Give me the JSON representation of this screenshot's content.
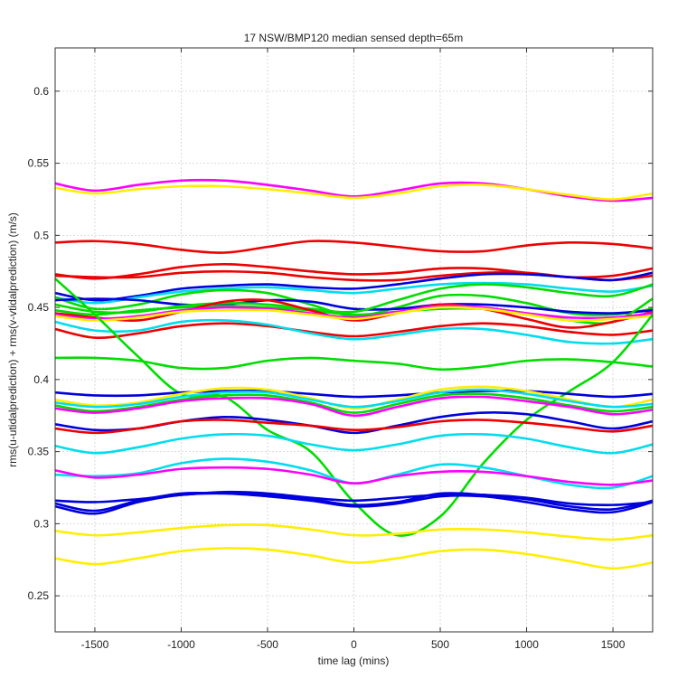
{
  "chart_data": {
    "type": "line",
    "title": "17 NSW/BMP120 median sensed depth=65m",
    "xlabel": "time lag (mins)",
    "ylabel": "rms(u-utidalprediction) + rms(v-vtidalprediction) (m/s)",
    "xlim": [
      -1730,
      1730
    ],
    "ylim": [
      0.225,
      0.63
    ],
    "grid": true,
    "x_ticks": [
      -1500,
      -1000,
      -500,
      0,
      500,
      1000,
      1500
    ],
    "y_ticks": [
      0.25,
      0.3,
      0.35,
      0.4,
      0.45,
      0.5,
      0.55,
      0.6
    ],
    "x_tick_labels": [
      "-1500",
      "-1000",
      "-500",
      "0",
      "500",
      "1000",
      "1500"
    ],
    "y_tick_labels": [
      "0.25",
      "0.3",
      "0.35",
      "0.4",
      "0.45",
      "0.5",
      "0.55",
      "0.6"
    ],
    "x": [
      -1730,
      -1500,
      -1250,
      -1000,
      -750,
      -500,
      -250,
      0,
      250,
      500,
      750,
      1000,
      1250,
      1500,
      1730
    ],
    "series": [
      {
        "color": "#ff00ff",
        "values": [
          0.536,
          0.531,
          0.535,
          0.538,
          0.538,
          0.535,
          0.531,
          0.527,
          0.531,
          0.536,
          0.536,
          0.532,
          0.527,
          0.524,
          0.526
        ]
      },
      {
        "color": "#ffee00",
        "values": [
          0.533,
          0.529,
          0.532,
          0.534,
          0.534,
          0.532,
          0.529,
          0.526,
          0.529,
          0.534,
          0.535,
          0.532,
          0.528,
          0.525,
          0.529
        ]
      },
      {
        "color": "#ee0000",
        "values": [
          0.495,
          0.496,
          0.494,
          0.49,
          0.488,
          0.492,
          0.496,
          0.495,
          0.492,
          0.489,
          0.489,
          0.493,
          0.495,
          0.494,
          0.491
        ]
      },
      {
        "color": "#ee0000",
        "values": [
          0.473,
          0.47,
          0.473,
          0.478,
          0.48,
          0.478,
          0.475,
          0.473,
          0.474,
          0.477,
          0.477,
          0.474,
          0.471,
          0.472,
          0.477
        ]
      },
      {
        "color": "#ee0000",
        "values": [
          0.472,
          0.471,
          0.471,
          0.474,
          0.475,
          0.474,
          0.471,
          0.469,
          0.469,
          0.472,
          0.474,
          0.474,
          0.471,
          0.469,
          0.472
        ]
      },
      {
        "color": "#0000dd",
        "values": [
          0.46,
          0.455,
          0.458,
          0.463,
          0.465,
          0.466,
          0.464,
          0.463,
          0.466,
          0.47,
          0.473,
          0.473,
          0.471,
          0.469,
          0.474
        ]
      },
      {
        "color": "#00ddee",
        "values": [
          0.457,
          0.453,
          0.457,
          0.461,
          0.463,
          0.464,
          0.462,
          0.46,
          0.463,
          0.466,
          0.467,
          0.466,
          0.463,
          0.461,
          0.465
        ]
      },
      {
        "color": "#00dd00",
        "values": [
          0.457,
          0.449,
          0.452,
          0.459,
          0.462,
          0.46,
          0.452,
          0.444,
          0.45,
          0.458,
          0.458,
          0.453,
          0.446,
          0.445,
          0.449
        ]
      },
      {
        "color": "#0000dd",
        "values": [
          0.455,
          0.456,
          0.455,
          0.452,
          0.452,
          0.455,
          0.454,
          0.449,
          0.449,
          0.452,
          0.452,
          0.45,
          0.447,
          0.446,
          0.448
        ]
      },
      {
        "color": "#00dd00",
        "values": [
          0.452,
          0.447,
          0.447,
          0.451,
          0.453,
          0.452,
          0.449,
          0.447,
          0.455,
          0.463,
          0.466,
          0.464,
          0.46,
          0.458,
          0.466
        ]
      },
      {
        "color": "#00dd00",
        "values": [
          0.448,
          0.445,
          0.448,
          0.45,
          0.451,
          0.45,
          0.448,
          0.445,
          0.447,
          0.449,
          0.449,
          0.446,
          0.441,
          0.44,
          0.456
        ]
      },
      {
        "color": "#ee0000",
        "values": [
          0.446,
          0.443,
          0.441,
          0.447,
          0.454,
          0.455,
          0.448,
          0.441,
          0.446,
          0.452,
          0.449,
          0.442,
          0.436,
          0.44,
          0.447
        ]
      },
      {
        "color": "#ff00ff",
        "values": [
          0.445,
          0.442,
          0.444,
          0.448,
          0.45,
          0.449,
          0.446,
          0.443,
          0.447,
          0.451,
          0.45,
          0.446,
          0.443,
          0.443,
          0.446
        ]
      },
      {
        "color": "#ffee00",
        "values": [
          0.444,
          0.441,
          0.443,
          0.447,
          0.448,
          0.448,
          0.445,
          0.442,
          0.446,
          0.45,
          0.449,
          0.445,
          0.441,
          0.442,
          0.444
        ]
      },
      {
        "color": "#ee0000",
        "values": [
          0.435,
          0.429,
          0.432,
          0.437,
          0.439,
          0.437,
          0.433,
          0.43,
          0.433,
          0.437,
          0.439,
          0.437,
          0.433,
          0.431,
          0.434
        ]
      },
      {
        "color": "#00ddee",
        "values": [
          0.44,
          0.434,
          0.434,
          0.44,
          0.441,
          0.438,
          0.432,
          0.428,
          0.431,
          0.435,
          0.435,
          0.431,
          0.426,
          0.425,
          0.428
        ]
      },
      {
        "color": "#00dd00",
        "values": [
          0.47,
          0.445,
          0.416,
          0.39,
          0.388,
          0.365,
          0.35,
          0.315,
          0.292,
          0.305,
          0.342,
          0.372,
          0.392,
          0.412,
          0.445
        ]
      },
      {
        "color": "#00dd00",
        "values": [
          0.415,
          0.415,
          0.413,
          0.408,
          0.408,
          0.413,
          0.415,
          0.413,
          0.411,
          0.407,
          0.409,
          0.413,
          0.414,
          0.412,
          0.409
        ]
      },
      {
        "color": "#0000dd",
        "values": [
          0.391,
          0.389,
          0.389,
          0.391,
          0.392,
          0.392,
          0.39,
          0.388,
          0.389,
          0.391,
          0.392,
          0.392,
          0.39,
          0.388,
          0.39
        ]
      },
      {
        "color": "#ffee00",
        "values": [
          0.386,
          0.382,
          0.384,
          0.39,
          0.394,
          0.393,
          0.387,
          0.38,
          0.386,
          0.393,
          0.395,
          0.392,
          0.386,
          0.381,
          0.386
        ]
      },
      {
        "color": "#00ddee",
        "values": [
          0.384,
          0.381,
          0.383,
          0.388,
          0.391,
          0.391,
          0.386,
          0.381,
          0.385,
          0.391,
          0.393,
          0.39,
          0.385,
          0.381,
          0.383
        ]
      },
      {
        "color": "#00dd00",
        "values": [
          0.382,
          0.378,
          0.381,
          0.386,
          0.389,
          0.389,
          0.384,
          0.377,
          0.383,
          0.389,
          0.39,
          0.387,
          0.382,
          0.378,
          0.381
        ]
      },
      {
        "color": "#ff00ff",
        "values": [
          0.38,
          0.377,
          0.38,
          0.385,
          0.387,
          0.387,
          0.383,
          0.375,
          0.381,
          0.387,
          0.388,
          0.385,
          0.381,
          0.376,
          0.379
        ]
      },
      {
        "color": "#0000dd",
        "values": [
          0.369,
          0.365,
          0.366,
          0.371,
          0.374,
          0.372,
          0.368,
          0.363,
          0.368,
          0.374,
          0.377,
          0.376,
          0.371,
          0.366,
          0.371
        ]
      },
      {
        "color": "#ee0000",
        "values": [
          0.366,
          0.363,
          0.366,
          0.371,
          0.372,
          0.37,
          0.368,
          0.365,
          0.367,
          0.371,
          0.372,
          0.37,
          0.367,
          0.364,
          0.368
        ]
      },
      {
        "color": "#00ddee",
        "values": [
          0.354,
          0.349,
          0.353,
          0.359,
          0.362,
          0.361,
          0.355,
          0.351,
          0.355,
          0.361,
          0.362,
          0.359,
          0.353,
          0.349,
          0.355
        ]
      },
      {
        "color": "#00ddee",
        "values": [
          0.334,
          0.333,
          0.335,
          0.342,
          0.345,
          0.343,
          0.337,
          0.328,
          0.334,
          0.341,
          0.339,
          0.333,
          0.327,
          0.325,
          0.333
        ]
      },
      {
        "color": "#ff00ff",
        "values": [
          0.337,
          0.332,
          0.334,
          0.338,
          0.339,
          0.338,
          0.334,
          0.328,
          0.333,
          0.336,
          0.336,
          0.333,
          0.329,
          0.327,
          0.33
        ]
      },
      {
        "color": "#0000dd",
        "values": [
          0.316,
          0.315,
          0.317,
          0.32,
          0.322,
          0.321,
          0.318,
          0.316,
          0.318,
          0.32,
          0.32,
          0.318,
          0.314,
          0.313,
          0.315
        ]
      },
      {
        "color": "#0000dd",
        "values": [
          0.312,
          0.307,
          0.315,
          0.32,
          0.321,
          0.319,
          0.316,
          0.312,
          0.314,
          0.319,
          0.319,
          0.315,
          0.31,
          0.308,
          0.315
        ]
      },
      {
        "color": "#0000dd",
        "values": [
          0.314,
          0.309,
          0.316,
          0.321,
          0.321,
          0.32,
          0.317,
          0.313,
          0.315,
          0.321,
          0.32,
          0.317,
          0.312,
          0.31,
          0.316
        ]
      },
      {
        "color": "#ffee00",
        "values": [
          0.295,
          0.292,
          0.294,
          0.297,
          0.299,
          0.299,
          0.296,
          0.292,
          0.293,
          0.296,
          0.296,
          0.294,
          0.291,
          0.289,
          0.292
        ]
      },
      {
        "color": "#ffee00",
        "values": [
          0.276,
          0.272,
          0.276,
          0.281,
          0.283,
          0.282,
          0.278,
          0.273,
          0.276,
          0.281,
          0.282,
          0.279,
          0.274,
          0.269,
          0.273
        ]
      }
    ]
  }
}
